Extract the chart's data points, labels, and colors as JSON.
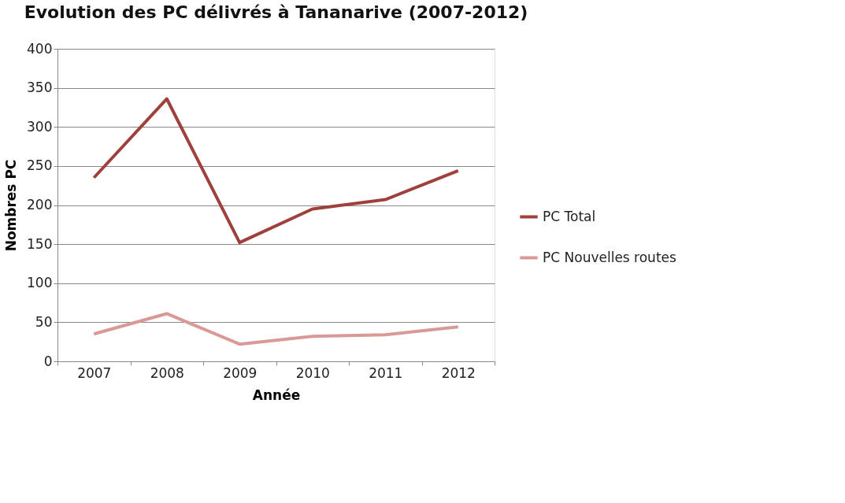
{
  "chart_data": {
    "type": "line",
    "title": "Evolution des PC  délivrés à Tananarive  (2007-2012)",
    "xlabel": "Année",
    "ylabel": "Nombres PC",
    "categories": [
      "2007",
      "2008",
      "2009",
      "2010",
      "2011",
      "2012"
    ],
    "series": [
      {
        "name": "PC Total",
        "color": "#a0403d",
        "values": [
          235,
          336,
          152,
          195,
          207,
          244
        ]
      },
      {
        "name": "PC Nouvelles routes",
        "color": "#d99a97",
        "values": [
          35,
          61,
          22,
          32,
          34,
          44
        ]
      }
    ],
    "ylim": [
      0,
      400
    ],
    "yticks": [
      0,
      50,
      100,
      150,
      200,
      250,
      300,
      350,
      400
    ],
    "grid": "y",
    "legend": "right",
    "marker": "none",
    "line_style": "solid"
  }
}
